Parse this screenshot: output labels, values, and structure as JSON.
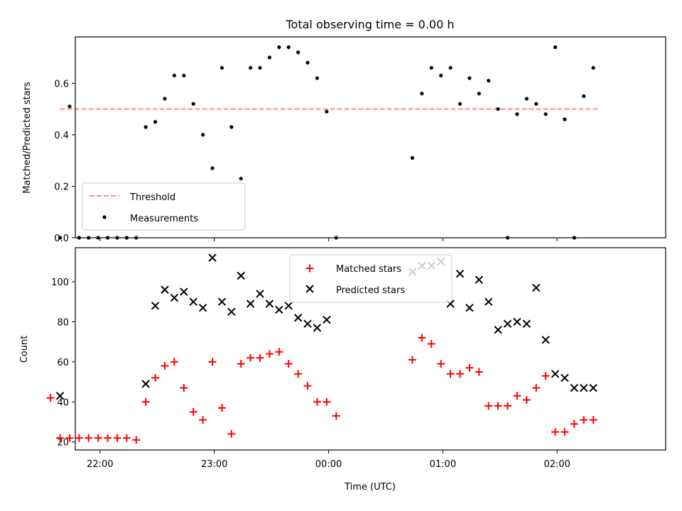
{
  "chart_data": [
    {
      "type": "scatter",
      "title": "Total observing time = 0.00 h",
      "xlabel": "",
      "ylabel": "Matched/Predicted stars",
      "xlim": [
        "21:47",
        "02:57"
      ],
      "ylim": [
        0,
        0.78
      ],
      "yticks": [
        0.0,
        0.2,
        0.4,
        0.6
      ],
      "ytick_labels": [
        "0.0",
        "0.2",
        "0.4",
        "0.6"
      ],
      "legend_position": "lower-left",
      "series": [
        {
          "name": "Threshold",
          "kind": "dashed-line",
          "color": "#ff7f7f",
          "x": [
            "21:39",
            "02:22"
          ],
          "y": [
            0.5,
            0.5
          ]
        },
        {
          "name": "Measurements",
          "kind": "points",
          "color": "#000000",
          "x": [
            "21:39",
            "21:44",
            "21:49",
            "21:54",
            "21:59",
            "22:04",
            "22:09",
            "22:14",
            "22:19",
            "22:24",
            "22:29",
            "22:34",
            "22:39",
            "22:44",
            "22:49",
            "22:54",
            "22:59",
            "23:04",
            "23:09",
            "23:14",
            "23:19",
            "23:24",
            "23:29",
            "23:34",
            "23:39",
            "23:44",
            "23:49",
            "23:54",
            "23:59",
            "00:04",
            "00:44",
            "00:49",
            "00:54",
            "00:59",
            "01:04",
            "01:09",
            "01:14",
            "01:19",
            "01:24",
            "01:29",
            "01:34",
            "01:39",
            "01:44",
            "01:49",
            "01:54",
            "01:59",
            "02:04",
            "02:09",
            "02:14",
            "02:19"
          ],
          "y": [
            0.0,
            0.51,
            0.0,
            0.0,
            0.0,
            0.0,
            0.0,
            0.0,
            0.0,
            0.43,
            0.45,
            0.54,
            0.63,
            0.63,
            0.52,
            0.4,
            0.27,
            0.66,
            0.43,
            0.23,
            0.66,
            0.66,
            0.7,
            0.74,
            0.74,
            0.72,
            0.68,
            0.62,
            0.49,
            0.0,
            0.31,
            0.56,
            0.66,
            0.63,
            0.66,
            0.52,
            0.62,
            0.56,
            0.61,
            0.5,
            0.0,
            0.48,
            0.54,
            0.52,
            0.48,
            0.74,
            0.46,
            0.0,
            0.55,
            0.66
          ]
        }
      ]
    },
    {
      "type": "scatter",
      "title": "",
      "xlabel": "Time (UTC)",
      "ylabel": "Count",
      "xlim": [
        "21:47",
        "02:57"
      ],
      "ylim": [
        16,
        117
      ],
      "yticks": [
        20,
        40,
        60,
        80,
        100
      ],
      "ytick_labels": [
        "20",
        "40",
        "60",
        "80",
        "100"
      ],
      "xticks": [
        "22:00",
        "23:00",
        "00:00",
        "01:00",
        "02:00"
      ],
      "legend_position": "top-center",
      "series": [
        {
          "name": "Matched stars",
          "marker": "+",
          "color": "#ff0000",
          "x": [
            "21:34",
            "21:39",
            "21:44",
            "21:49",
            "21:54",
            "21:59",
            "22:04",
            "22:09",
            "22:14",
            "22:19",
            "22:24",
            "22:29",
            "22:34",
            "22:39",
            "22:44",
            "22:49",
            "22:54",
            "22:59",
            "23:04",
            "23:09",
            "23:14",
            "23:19",
            "23:24",
            "23:29",
            "23:34",
            "23:39",
            "23:44",
            "23:49",
            "23:54",
            "23:59",
            "00:04",
            "00:44",
            "00:49",
            "00:54",
            "00:59",
            "01:04",
            "01:09",
            "01:14",
            "01:19",
            "01:24",
            "01:29",
            "01:34",
            "01:39",
            "01:44",
            "01:49",
            "01:54",
            "01:59",
            "02:04",
            "02:09",
            "02:14",
            "02:19"
          ],
          "y": [
            42,
            22,
            22,
            22,
            22,
            22,
            22,
            22,
            22,
            21,
            40,
            52,
            58,
            60,
            47,
            35,
            31,
            60,
            37,
            24,
            59,
            62,
            62,
            64,
            65,
            59,
            54,
            48,
            40,
            40,
            33,
            61,
            72,
            69,
            59,
            54,
            54,
            57,
            55,
            38,
            38,
            38,
            43,
            41,
            47,
            53,
            25,
            25,
            29,
            31,
            31
          ]
        },
        {
          "name": "Predicted stars",
          "marker": "x",
          "color": "#000000",
          "x": [
            "21:39",
            "22:24",
            "22:29",
            "22:34",
            "22:39",
            "22:44",
            "22:49",
            "22:54",
            "22:59",
            "23:04",
            "23:09",
            "23:14",
            "23:19",
            "23:24",
            "23:29",
            "23:34",
            "23:39",
            "23:44",
            "23:49",
            "23:54",
            "23:59",
            "00:44",
            "00:49",
            "00:54",
            "00:59",
            "01:04",
            "01:09",
            "01:14",
            "01:19",
            "01:24",
            "01:29",
            "01:34",
            "01:39",
            "01:44",
            "01:49",
            "01:54",
            "01:59",
            "02:04",
            "02:09",
            "02:14",
            "02:19"
          ],
          "y": [
            43,
            49,
            88,
            96,
            92,
            95,
            90,
            87,
            112,
            90,
            85,
            103,
            89,
            94,
            89,
            86,
            88,
            82,
            79,
            77,
            81,
            105,
            108,
            108,
            110,
            89,
            104,
            87,
            101,
            90,
            76,
            79,
            80,
            79,
            97,
            71,
            54,
            52,
            47,
            47,
            47
          ]
        }
      ]
    }
  ]
}
